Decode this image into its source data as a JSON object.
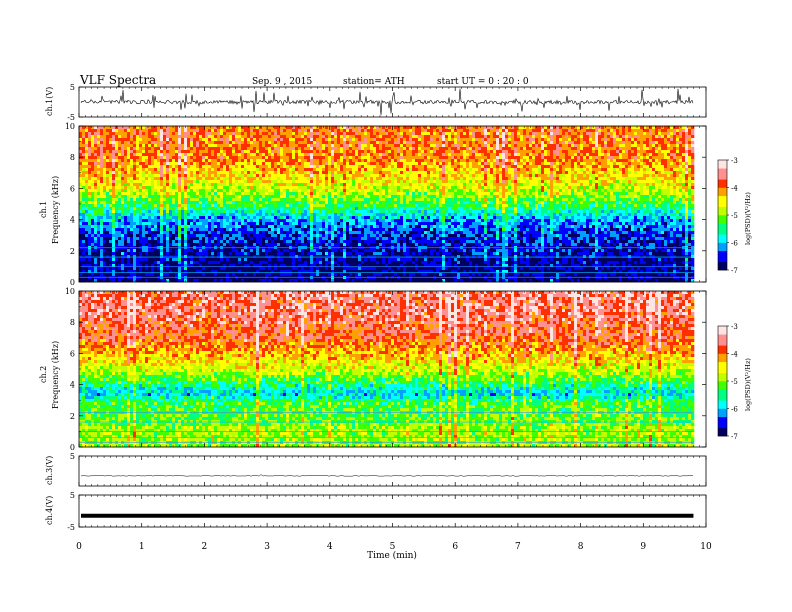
{
  "header": {
    "title": "VLF  Spectra",
    "date": "Sep. 9  , 2015",
    "station": "station= ATH",
    "start": "start  UT =   0  : 20 : 0"
  },
  "chart_data": [
    {
      "type": "line",
      "panel": "ch1-waveform",
      "ylabel": "ch.1(V)",
      "ylim": [
        -5,
        5
      ],
      "yticks": [
        "5",
        "-5"
      ],
      "baseline": 0,
      "series_color": "#000000"
    },
    {
      "type": "heatmap",
      "panel": "ch1-spectrogram",
      "ylabel": [
        "ch.1",
        "Frequency  (kHz)"
      ],
      "ylim": [
        0,
        10
      ],
      "yticks": [
        "0",
        "2",
        "4",
        "6",
        "8",
        "10"
      ],
      "colorbar": {
        "label": "log(PSD)(V²/Hz)",
        "range": [
          -7,
          -3
        ],
        "ticks": [
          "-3",
          "-4",
          "-5",
          "-6",
          "-7"
        ],
        "colors": [
          "#000060",
          "#0000ff",
          "#00a0ff",
          "#00ffff",
          "#00ff80",
          "#40ff00",
          "#c0ff00",
          "#ffff00",
          "#ffa000",
          "#ff3000",
          "#ff9090",
          "#ffe4e4"
        ]
      },
      "profile_description": "dark blue below ~4 kHz, cyan-green transition 4-6 kHz, yellow/orange/red above ~7 kHz",
      "profile": [
        [
          0,
          -6.9
        ],
        [
          1,
          -6.8
        ],
        [
          2,
          -6.7
        ],
        [
          3,
          -6.5
        ],
        [
          4,
          -6.2
        ],
        [
          5,
          -5.4
        ],
        [
          6,
          -4.8
        ],
        [
          7,
          -4.4
        ],
        [
          8,
          -4.1
        ],
        [
          9,
          -4.0
        ],
        [
          10,
          -4.0
        ]
      ],
      "data_ends_min": 9.8
    },
    {
      "type": "heatmap",
      "panel": "ch2-spectrogram",
      "ylabel": [
        "ch.2",
        "Frequency  (kHz)"
      ],
      "ylim": [
        0,
        10
      ],
      "yticks": [
        "0",
        "2",
        "4",
        "6",
        "8",
        "10"
      ],
      "colorbar": {
        "label": "log(PSD)(V²/Hz)",
        "range": [
          -7,
          -3
        ],
        "ticks": [
          "-3",
          "-4",
          "-5",
          "-6",
          "-7"
        ]
      },
      "profile_description": "green/cyan below 4 kHz with blue band near 3.5 kHz, yellow 5-6 kHz, orange/red above ~7 kHz",
      "profile": [
        [
          0,
          -5.0
        ],
        [
          1,
          -4.9
        ],
        [
          2,
          -5.2
        ],
        [
          3,
          -5.3
        ],
        [
          3.5,
          -6.0
        ],
        [
          4,
          -5.6
        ],
        [
          5,
          -4.8
        ],
        [
          6,
          -4.3
        ],
        [
          7,
          -3.9
        ],
        [
          8,
          -3.7
        ],
        [
          9,
          -3.6
        ],
        [
          10,
          -3.6
        ]
      ],
      "data_ends_min": 9.8
    },
    {
      "type": "line",
      "panel": "ch3-waveform",
      "ylabel": "ch.3(V)",
      "ylim": [
        -5,
        5
      ],
      "yticks": [
        "5"
      ],
      "baseline": 0
    },
    {
      "type": "line",
      "panel": "ch4-waveform",
      "ylabel": "ch.4(V)",
      "ylim": [
        -5,
        5
      ],
      "yticks": [
        "5",
        "-5"
      ],
      "baseline": 0
    }
  ],
  "x_axis": {
    "label": "Time  (min)",
    "range": [
      0,
      10
    ],
    "ticks": [
      "0",
      "1",
      "2",
      "3",
      "4",
      "5",
      "6",
      "7",
      "8",
      "9",
      "10"
    ]
  }
}
